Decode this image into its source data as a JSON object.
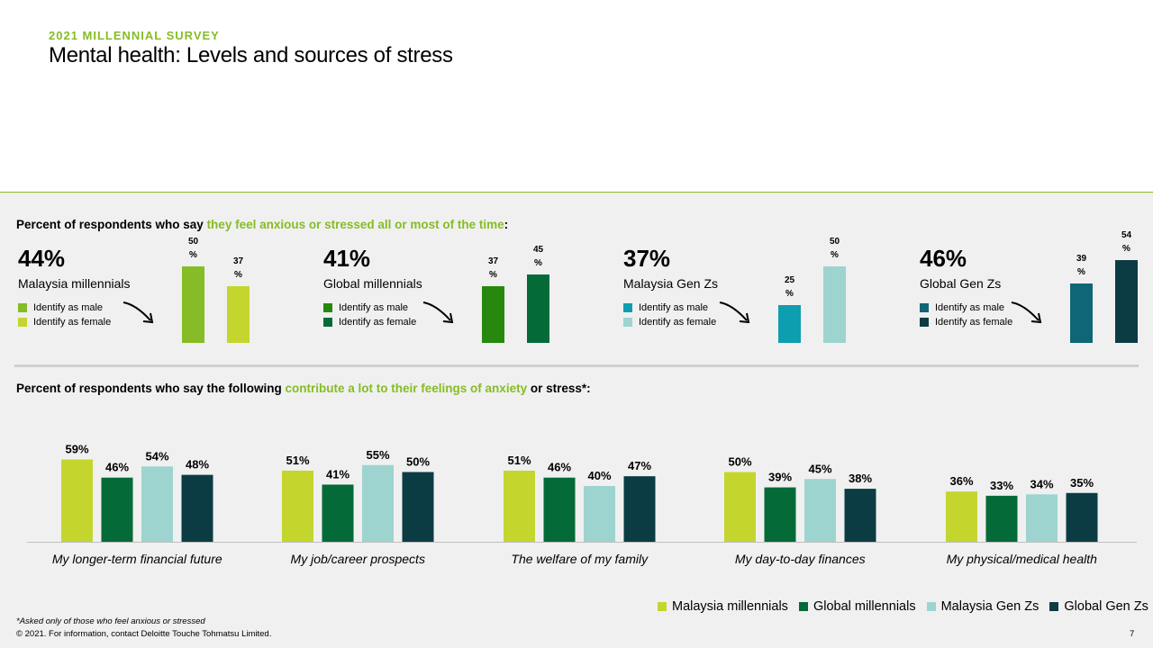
{
  "header": {
    "survey_label": "2021 MILLENNIAL SURVEY",
    "title": "Mental health: Levels and sources of stress"
  },
  "section1": {
    "heading_before": "Percent of respondents who say ",
    "heading_highlight": "they feel anxious or stressed all or most of the time",
    "heading_after": ":",
    "groups": [
      {
        "pct": "44%",
        "name": "Malaysia millennials",
        "legend": [
          "Identify as male",
          "Identify as female"
        ],
        "colors": [
          "#86bc25",
          "#c4d62e"
        ],
        "values": [
          50,
          37
        ],
        "labels": [
          "50\n%",
          "37\n%"
        ]
      },
      {
        "pct": "41%",
        "name": "Global millennials",
        "legend": [
          "Identify as male",
          "Identify as female"
        ],
        "colors": [
          "#26890d",
          "#046a38"
        ],
        "values": [
          37,
          45
        ],
        "labels": [
          "37\n%",
          "45\n%"
        ]
      },
      {
        "pct": "37%",
        "name": "Malaysia Gen Zs",
        "legend": [
          "Identify as male",
          "Identify as female"
        ],
        "colors": [
          "#0d9eb0",
          "#9dd4cf"
        ],
        "values": [
          25,
          50
        ],
        "labels": [
          "25\n%",
          "50\n%"
        ]
      },
      {
        "pct": "46%",
        "name": "Global Gen Zs",
        "legend": [
          "Identify as male",
          "Identify as female"
        ],
        "colors": [
          "#0f6674",
          "#0b3c44"
        ],
        "values": [
          39,
          54
        ],
        "labels": [
          "39\n%",
          "54\n%"
        ]
      }
    ]
  },
  "section2": {
    "heading_before": "Percent of respondents who say the following ",
    "heading_highlight": "contribute a lot to their feelings of anxiety",
    "heading_after": " or stress*:"
  },
  "chart_data": {
    "type": "bar",
    "title": "Percent of respondents who say the following contribute a lot to their feelings of anxiety or stress*:",
    "categories": [
      "My longer-term financial future",
      "My job/career prospects",
      "The welfare of my family",
      "My day-to-day finances",
      "My physical/medical health"
    ],
    "series": [
      {
        "name": "Malaysia millennials",
        "color": "#c4d62e",
        "values": [
          59,
          51,
          51,
          50,
          36
        ]
      },
      {
        "name": "Global millennials",
        "color": "#046a38",
        "values": [
          46,
          41,
          46,
          39,
          33
        ]
      },
      {
        "name": "Malaysia Gen Zs",
        "color": "#9dd4cf",
        "values": [
          54,
          55,
          40,
          45,
          34
        ]
      },
      {
        "name": "Global Gen Zs",
        "color": "#0b3c44",
        "values": [
          48,
          50,
          47,
          38,
          35
        ]
      }
    ],
    "value_suffix": "%",
    "ylim": [
      0,
      100
    ],
    "grid": false,
    "legend_position": "bottom-right"
  },
  "footer": {
    "footnote": "*Asked only of those who feel anxious or stressed",
    "copyright": "© 2021. For information, contact Deloitte Touche Tohmatsu Limited.",
    "page_number": "7"
  }
}
